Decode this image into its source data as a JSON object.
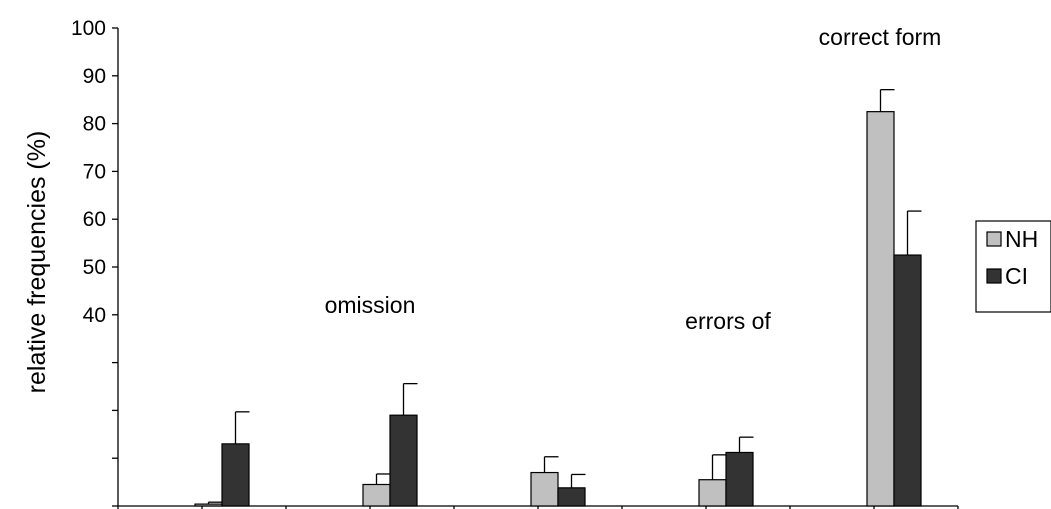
{
  "chart_data": {
    "type": "bar",
    "title": "",
    "xlabel": "",
    "ylabel": "relative frequencies (%)",
    "ylim": [
      0,
      100
    ],
    "yticks": [
      0,
      10,
      20,
      30,
      40,
      50,
      60,
      70,
      80,
      90,
      100
    ],
    "ytick_labels": [
      "",
      "",
      "",
      "",
      "40",
      "50",
      "60",
      "70",
      "80",
      "90",
      "100"
    ],
    "categories": [
      "",
      "omission",
      "",
      "errors of",
      "correct form"
    ],
    "series": [
      {
        "name": "NH",
        "values": [
          0.4,
          4.5,
          7,
          5.5,
          82.5
        ],
        "errors": [
          0.4,
          2.2,
          3.3,
          5.2,
          4.6
        ],
        "color": "#c0c0c0"
      },
      {
        "name": "CI",
        "values": [
          13,
          19,
          3.8,
          11.2,
          52.5
        ],
        "errors": [
          6.7,
          6.6,
          2.8,
          3.2,
          9.2
        ],
        "color": "#333333"
      }
    ],
    "annotations": [
      "omission",
      "errors of",
      "correct form"
    ],
    "legend": {
      "position": "right",
      "items": [
        "NH",
        "CI"
      ]
    },
    "grid": false
  }
}
